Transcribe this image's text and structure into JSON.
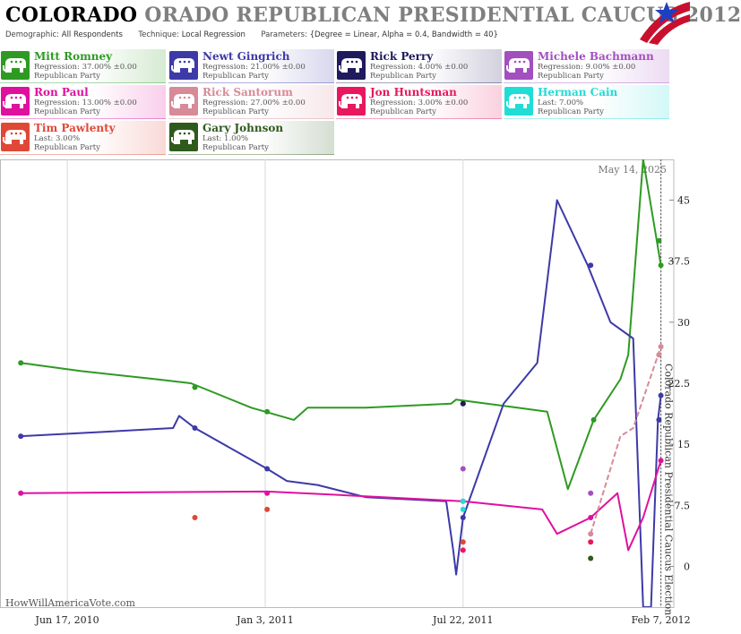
{
  "header": {
    "title_bold": "COLORADO",
    "title_grey": "ORADO REPUBLICAN PRESIDENTIAL CAUCUS 2012",
    "demographic_label": "Demographic:",
    "demographic_value": "All Respondents",
    "technique_label": "Technique:",
    "technique_value": "Local Regression",
    "parameters_label": "Parameters:",
    "parameters_value": "{Degree = Linear, Alpha = 0.4, Bandwidth = 40}"
  },
  "candidates": [
    {
      "name": "Mitt Romney",
      "stat": "Regression: 37.00% ±0.00",
      "party": "Republican Party",
      "color": "#2e9a23"
    },
    {
      "name": "Newt Gingrich",
      "stat": "Regression: 21.00% ±0.00",
      "party": "Republican Party",
      "color": "#3d3aa8"
    },
    {
      "name": "Rick Perry",
      "stat": "Regression: 4.00% ±0.00",
      "party": "Republican Party",
      "color": "#1f1a5c"
    },
    {
      "name": "Michele Bachmann",
      "stat": "Regression: 9.00% ±0.00",
      "party": "Republican Party",
      "color": "#a24fbf"
    },
    {
      "name": "Ron Paul",
      "stat": "Regression: 13.00% ±0.00",
      "party": "Republican Party",
      "color": "#e0109f"
    },
    {
      "name": "Rick Santorum",
      "stat": "Regression: 27.00% ±0.00",
      "party": "Republican Party",
      "color": "#d78a98"
    },
    {
      "name": "Jon Huntsman",
      "stat": "Regression: 3.00% ±0.00",
      "party": "Republican Party",
      "color": "#e8185e"
    },
    {
      "name": "Herman Cain",
      "stat": "Last: 7.00%",
      "party": "Republican Party",
      "color": "#22dcd6"
    },
    {
      "name": "Tim Pawlenty",
      "stat": "Last: 3.00%",
      "party": "Republican Party",
      "color": "#e04836"
    },
    {
      "name": "Gary Johnson",
      "stat": "Last: 1.00%",
      "party": "Republican Party",
      "color": "#2f5a1c"
    }
  ],
  "chart_data": {
    "type": "line",
    "title": "",
    "xlabel": "",
    "ylabel": "",
    "ylim": [
      -5,
      50
    ],
    "xlim": [
      "2010-04-10",
      "2012-02-20"
    ],
    "x_ticks": [
      {
        "date": "2010-06-17",
        "label": "Jun 17, 2010"
      },
      {
        "date": "2011-01-03",
        "label": "Jan 3, 2011"
      },
      {
        "date": "2011-07-22",
        "label": "Jul 22, 2011"
      },
      {
        "date": "2012-02-07",
        "label": "Feb 7, 2012"
      }
    ],
    "y_ticks": [
      0,
      7.5,
      15,
      22.5,
      30,
      37.5,
      45
    ],
    "grid": "vertical",
    "date_stamp": "May 14, 2025",
    "event_date": "2012-02-07",
    "event_label": "Colorado Republican Presidential Caucus Election",
    "watermark": "HowWillAmericaVote.com",
    "series": [
      {
        "name": "Mitt Romney",
        "color": "#2e9a23",
        "line": [
          [
            "2010-05-01",
            25
          ],
          [
            "2010-07-01",
            24
          ],
          [
            "2010-09-15",
            23
          ],
          [
            "2010-10-20",
            22.5
          ],
          [
            "2010-12-20",
            19.5
          ],
          [
            "2011-02-01",
            18
          ],
          [
            "2011-02-15",
            19.5
          ],
          [
            "2011-04-15",
            19.5
          ],
          [
            "2011-07-10",
            20
          ],
          [
            "2011-07-15",
            20.5
          ],
          [
            "2011-08-15",
            20
          ],
          [
            "2011-09-15",
            19.5
          ],
          [
            "2011-10-15",
            19
          ],
          [
            "2011-11-05",
            9.5
          ],
          [
            "2011-12-01",
            18
          ],
          [
            "2011-12-28",
            23
          ],
          [
            "2012-01-05",
            26
          ],
          [
            "2012-01-20",
            50
          ],
          [
            "2012-02-07",
            37
          ]
        ],
        "points": [
          [
            "2010-05-01",
            25
          ],
          [
            "2010-10-24",
            22
          ],
          [
            "2011-01-05",
            19
          ],
          [
            "2011-07-22",
            20
          ],
          [
            "2011-12-01",
            18
          ],
          [
            "2012-02-05",
            40
          ],
          [
            "2012-02-07",
            37
          ]
        ]
      },
      {
        "name": "Newt Gingrich",
        "color": "#3d3aa8",
        "line": [
          [
            "2010-05-01",
            16
          ],
          [
            "2010-07-20",
            16.5
          ],
          [
            "2010-10-02",
            17
          ],
          [
            "2010-10-08",
            18.5
          ],
          [
            "2010-10-24",
            17
          ],
          [
            "2011-01-05",
            12
          ],
          [
            "2011-01-25",
            10.5
          ],
          [
            "2011-02-25",
            10
          ],
          [
            "2011-04-15",
            8.5
          ],
          [
            "2011-07-05",
            8
          ],
          [
            "2011-07-12",
            2
          ],
          [
            "2011-07-15",
            -1
          ],
          [
            "2011-07-22",
            6
          ],
          [
            "2011-09-01",
            20
          ],
          [
            "2011-10-05",
            25
          ],
          [
            "2011-10-25",
            45
          ],
          [
            "2011-11-25",
            37
          ],
          [
            "2011-12-18",
            30
          ],
          [
            "2012-01-10",
            28
          ],
          [
            "2012-01-20",
            -5
          ],
          [
            "2012-01-28",
            -5
          ],
          [
            "2012-02-04",
            18
          ],
          [
            "2012-02-07",
            21
          ]
        ],
        "points": [
          [
            "2010-05-01",
            16
          ],
          [
            "2010-10-24",
            17
          ],
          [
            "2011-01-05",
            12
          ],
          [
            "2011-07-22",
            6
          ],
          [
            "2011-11-28",
            37
          ],
          [
            "2012-02-05",
            18
          ],
          [
            "2012-02-07",
            21
          ]
        ]
      },
      {
        "name": "Ron Paul",
        "color": "#e0109f",
        "line": [
          [
            "2010-05-01",
            9
          ],
          [
            "2010-09-01",
            9.1
          ],
          [
            "2011-01-05",
            9.2
          ],
          [
            "2011-03-15",
            8.8
          ],
          [
            "2011-07-22",
            8
          ],
          [
            "2011-10-10",
            7
          ],
          [
            "2011-10-25",
            4
          ],
          [
            "2011-11-28",
            6
          ],
          [
            "2011-12-25",
            9
          ],
          [
            "2012-01-05",
            2
          ],
          [
            "2012-01-20",
            6
          ],
          [
            "2012-02-07",
            13
          ]
        ],
        "points": [
          [
            "2010-05-01",
            9
          ],
          [
            "2011-01-05",
            9
          ],
          [
            "2011-07-22",
            8
          ],
          [
            "2011-11-28",
            6
          ],
          [
            "2012-02-07",
            13
          ]
        ]
      },
      {
        "name": "Rick Santorum",
        "color": "#d78a98",
        "line": [
          [
            "2011-11-28",
            4
          ],
          [
            "2011-12-28",
            16
          ],
          [
            "2012-01-10",
            17
          ],
          [
            "2012-02-07",
            27
          ]
        ],
        "points": [
          [
            "2011-11-28",
            4
          ],
          [
            "2012-02-05",
            26
          ],
          [
            "2012-02-07",
            27
          ]
        ]
      },
      {
        "name": "Rick Perry",
        "color": "#1f1a5c",
        "line": [],
        "points": [
          [
            "2011-07-22",
            20
          ]
        ]
      },
      {
        "name": "Michele Bachmann",
        "color": "#a24fbf",
        "line": [],
        "points": [
          [
            "2011-07-22",
            12
          ],
          [
            "2011-11-28",
            9
          ]
        ]
      },
      {
        "name": "Herman Cain",
        "color": "#22dcd6",
        "line": [],
        "points": [
          [
            "2011-07-22",
            8
          ],
          [
            "2011-07-22",
            7
          ]
        ]
      },
      {
        "name": "Jon Huntsman",
        "color": "#e8185e",
        "line": [],
        "points": [
          [
            "2011-07-22",
            2
          ],
          [
            "2011-11-28",
            3
          ]
        ]
      },
      {
        "name": "Tim Pawlenty",
        "color": "#e04836",
        "line": [],
        "points": [
          [
            "2010-10-24",
            6
          ],
          [
            "2011-01-05",
            7
          ],
          [
            "2011-07-22",
            3
          ]
        ]
      },
      {
        "name": "Gary Johnson",
        "color": "#2f5a1c",
        "line": [],
        "points": [
          [
            "2011-11-28",
            1
          ]
        ]
      }
    ]
  }
}
